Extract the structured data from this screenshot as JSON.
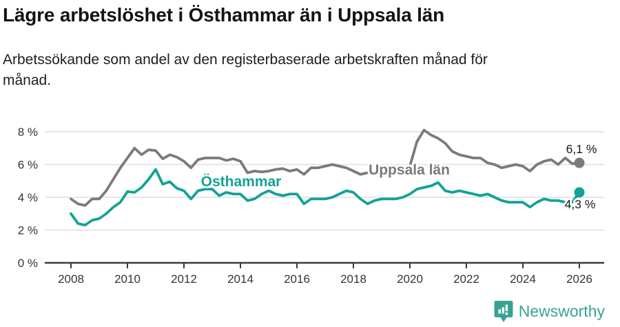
{
  "header": {
    "title": "Lägre arbetslöshet i Östhammar än i Uppsala län",
    "subtitle_lines": [
      "Arbetssökande som andel av den registerbaserade arbetskraften månad för",
      "månad."
    ]
  },
  "chart_data": {
    "type": "line",
    "title": "Lägre arbetslöshet i Östhammar än i Uppsala län",
    "x_start": 2008,
    "x_step": 0.25,
    "x_axis": {
      "ticks": [
        2008,
        2010,
        2012,
        2014,
        2016,
        2018,
        2020,
        2022,
        2024,
        2026
      ],
      "labels": [
        "2008",
        "2010",
        "2012",
        "2014",
        "2016",
        "2018",
        "2020",
        "2022",
        "2024",
        "2026"
      ]
    },
    "y_axis": {
      "ticks": [
        0,
        2,
        4,
        6,
        8
      ],
      "labels": [
        "0 %",
        "2 %",
        "4 %",
        "6 %",
        "8 %"
      ],
      "ylim": [
        0,
        8.6
      ]
    },
    "grid": true,
    "unit": "%",
    "colors": {
      "uppsala": "#7a7a7e",
      "osthammar": "#13a295"
    },
    "series": [
      {
        "name": "Uppsala län",
        "color": "#7a7a7e",
        "end_label": "6,1 %",
        "latest_value": 6.1,
        "values": [
          3.9,
          3.6,
          3.5,
          3.9,
          3.9,
          4.4,
          5.1,
          5.8,
          6.4,
          7.0,
          6.6,
          6.9,
          6.85,
          6.35,
          6.6,
          6.45,
          6.2,
          5.8,
          6.3,
          6.4,
          6.4,
          6.4,
          6.25,
          6.35,
          6.2,
          5.5,
          5.6,
          5.55,
          5.6,
          5.7,
          5.75,
          5.6,
          5.7,
          5.4,
          5.8,
          5.8,
          5.9,
          6.0,
          5.9,
          5.8,
          5.6,
          5.4,
          5.5,
          5.55,
          5.6,
          5.6,
          5.5,
          5.6,
          5.9,
          7.4,
          8.1,
          7.8,
          7.6,
          7.3,
          6.8,
          6.6,
          6.5,
          6.4,
          6.4,
          6.1,
          6.0,
          5.8,
          5.9,
          6.0,
          5.9,
          5.6,
          6.0,
          6.2,
          6.3,
          6.0,
          6.4,
          6.05,
          6.1
        ]
      },
      {
        "name": "Östhammar",
        "color": "#13a295",
        "end_label": "4,3 %",
        "latest_value": 4.3,
        "values": [
          3.0,
          2.4,
          2.3,
          2.6,
          2.7,
          3.0,
          3.4,
          3.7,
          4.35,
          4.3,
          4.6,
          5.1,
          5.7,
          4.8,
          4.95,
          4.55,
          4.4,
          3.9,
          4.4,
          4.5,
          4.5,
          4.1,
          4.3,
          4.2,
          4.2,
          3.8,
          3.9,
          4.2,
          4.4,
          4.2,
          4.1,
          4.2,
          4.2,
          3.6,
          3.9,
          3.9,
          3.9,
          4.0,
          4.2,
          4.4,
          4.3,
          3.9,
          3.6,
          3.8,
          3.9,
          3.9,
          3.9,
          4.0,
          4.2,
          4.5,
          4.6,
          4.7,
          4.9,
          4.4,
          4.3,
          4.4,
          4.3,
          4.2,
          4.1,
          4.2,
          4.0,
          3.8,
          3.7,
          3.7,
          3.7,
          3.4,
          3.7,
          3.9,
          3.8,
          3.8,
          3.7,
          3.7,
          4.3
        ]
      }
    ]
  },
  "footer": {
    "brand": "Newsworthy",
    "logo_icon": "bar-chart-speech-bubble-icon",
    "brand_color": "#38a395"
  }
}
